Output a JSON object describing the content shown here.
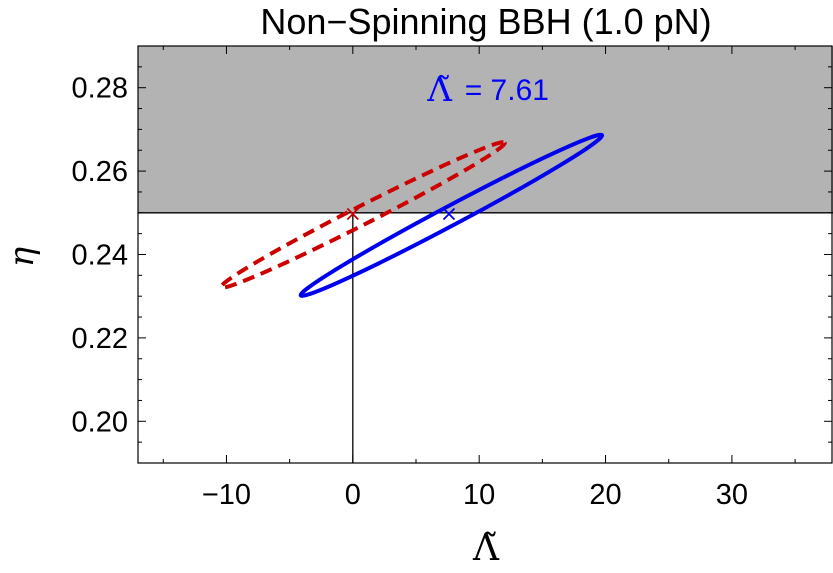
{
  "chart_data": {
    "type": "scatter",
    "title": "Non−Spinning BBH (1.0 pN)",
    "xlabel": "Λ̃",
    "ylabel": "η",
    "xlim": [
      -17,
      38
    ],
    "ylim": [
      0.19,
      0.29
    ],
    "xticks": [
      -10,
      0,
      10,
      20,
      30
    ],
    "xtick_labels": [
      "−10",
      "0",
      "10",
      "20",
      "30"
    ],
    "yticks": [
      0.2,
      0.22,
      0.24,
      0.26,
      0.28
    ],
    "ytick_labels": [
      "0.20",
      "0.22",
      "0.24",
      "0.26",
      "0.28"
    ],
    "grid": false,
    "shaded_region": {
      "y_from": 0.25,
      "y_to": 0.29,
      "color": "#b3b3b3"
    },
    "reference_lines": [
      {
        "orientation": "horizontal",
        "y": 0.25,
        "x_from": -17,
        "x_to": 38
      },
      {
        "orientation": "vertical",
        "x": 0,
        "y_from": 0.19,
        "y_to": 0.25
      }
    ],
    "annotation": {
      "symbol": "Λ̃",
      "text": "= 7.61",
      "x": 10.2,
      "y": 0.2795,
      "color": "#0000ff"
    },
    "series": [
      {
        "style": "dashed",
        "color": "#cc0000",
        "marker": {
          "x": 0.0,
          "y": 0.2497
        },
        "ellipse": {
          "cx": 0.8,
          "cy": 0.2495,
          "rx": 12.6,
          "ry": 0.0022,
          "angle_deg": 27
        }
      },
      {
        "style": "solid",
        "color": "#0000ee",
        "marker": {
          "x": 7.61,
          "y": 0.2497
        },
        "ellipse": {
          "cx": 7.8,
          "cy": 0.2494,
          "rx": 13.5,
          "ry": 0.0023,
          "angle_deg": 28
        }
      }
    ]
  }
}
